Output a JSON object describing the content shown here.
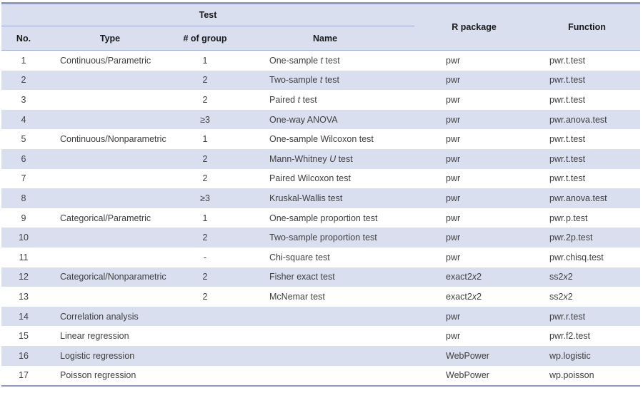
{
  "colors": {
    "band": "#d9dfef",
    "rule": "#9ba8d0",
    "border_strong": "#8d9ac8",
    "text_head": "#1a1a1a",
    "text_body": "#3f3f3f"
  },
  "table": {
    "header": {
      "test_group": "Test",
      "col_no": "No.",
      "col_type": "Type",
      "col_group": "# of group",
      "col_name": "Name",
      "col_r_package": "R package",
      "col_function": "Function"
    },
    "rows": [
      {
        "no": "1",
        "type": "Continuous/Parametric",
        "group": "1",
        "name": "One-sample *t* test",
        "r_package": "pwr",
        "function": "pwr.t.test"
      },
      {
        "no": "2",
        "type": "",
        "group": "2",
        "name": "Two-sample *t* test",
        "r_package": "pwr",
        "function": "pwr.t.test"
      },
      {
        "no": "3",
        "type": "",
        "group": "2",
        "name": "Paired *t* test",
        "r_package": "pwr",
        "function": "pwr.t.test"
      },
      {
        "no": "4",
        "type": "",
        "group": "≥3",
        "name": "One-way ANOVA",
        "r_package": "pwr",
        "function": "pwr.anova.test"
      },
      {
        "no": "5",
        "type": "Continuous/Nonparametric",
        "group": "1",
        "name": "One-sample Wilcoxon test",
        "r_package": "pwr",
        "function": "pwr.t.test"
      },
      {
        "no": "6",
        "type": "",
        "group": "2",
        "name": "Mann-Whitney *U* test",
        "r_package": "pwr",
        "function": "pwr.t.test"
      },
      {
        "no": "7",
        "type": "",
        "group": "2",
        "name": "Paired Wilcoxon test",
        "r_package": "pwr",
        "function": "pwr.t.test"
      },
      {
        "no": "8",
        "type": "",
        "group": "≥3",
        "name": "Kruskal-Wallis test",
        "r_package": "pwr",
        "function": "pwr.anova.test"
      },
      {
        "no": "9",
        "type": "Categorical/Parametric",
        "group": "1",
        "name": "One-sample proportion test",
        "r_package": "pwr",
        "function": "pwr.p.test"
      },
      {
        "no": "10",
        "type": "",
        "group": "2",
        "name": "Two-sample proportion test",
        "r_package": "pwr",
        "function": "pwr.2p.test"
      },
      {
        "no": "11",
        "type": "",
        "group": "-",
        "name": "Chi-square test",
        "r_package": "pwr",
        "function": "pwr.chisq.test"
      },
      {
        "no": "12",
        "type": "Categorical/Nonparametric",
        "group": "2",
        "name": "Fisher exact test",
        "r_package": "exact2*x*2",
        "function": "ss2*x*2"
      },
      {
        "no": "13",
        "type": "",
        "group": "2",
        "name": "McNemar test",
        "r_package": "exact2*x*2",
        "function": "ss2*x*2"
      },
      {
        "no": "14",
        "type": "Correlation analysis",
        "group": "",
        "name": "",
        "r_package": "pwr",
        "function": "pwr.r.test"
      },
      {
        "no": "15",
        "type": "Linear regression",
        "group": "",
        "name": "",
        "r_package": "pwr",
        "function": "pwr.f2.test"
      },
      {
        "no": "16",
        "type": "Logistic regression",
        "group": "",
        "name": "",
        "r_package": "WebPower",
        "function": "wp.logistic"
      },
      {
        "no": "17",
        "type": "Poisson regression",
        "group": "",
        "name": "",
        "r_package": "WebPower",
        "function": "wp.poisson"
      }
    ]
  }
}
